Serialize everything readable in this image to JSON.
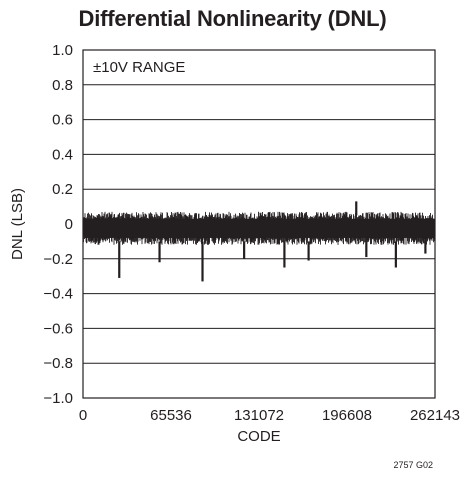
{
  "chart_data": {
    "type": "line",
    "title": "Differential Nonlinearity (DNL)",
    "xlabel": "CODE",
    "ylabel": "DNL (LSB)",
    "xlim": [
      0,
      262143
    ],
    "ylim": [
      -1.0,
      1.0
    ],
    "x_ticks": [
      0,
      65536,
      131072,
      196608,
      262143
    ],
    "x_tick_labels": [
      "0",
      "65536",
      "131072",
      "196608",
      "262143"
    ],
    "y_ticks": [
      1.0,
      0.8,
      0.6,
      0.4,
      0.2,
      0,
      -0.2,
      -0.4,
      -0.6,
      -0.8,
      -1.0
    ],
    "y_tick_labels": [
      "1.0",
      "0.8",
      "0.6",
      "0.4",
      "0.2",
      "0",
      "−0.2",
      "−0.4",
      "−0.6",
      "−0.8",
      "−1.0"
    ],
    "grid": "horizontal",
    "annotation": "±10V RANGE",
    "footnote": "2757 G02",
    "noise_band": {
      "upper": 0.07,
      "lower": -0.12
    },
    "series": [
      {
        "color": "#231f20",
        "spikes": [
          {
            "x": 27000,
            "y": -0.31
          },
          {
            "x": 57000,
            "y": -0.22
          },
          {
            "x": 89000,
            "y": -0.33
          },
          {
            "x": 120000,
            "y": -0.2
          },
          {
            "x": 150000,
            "y": -0.25
          },
          {
            "x": 168000,
            "y": -0.21
          },
          {
            "x": 203500,
            "y": 0.13
          },
          {
            "x": 211000,
            "y": -0.19
          },
          {
            "x": 233000,
            "y": -0.25
          },
          {
            "x": 255000,
            "y": -0.17
          }
        ]
      }
    ]
  }
}
